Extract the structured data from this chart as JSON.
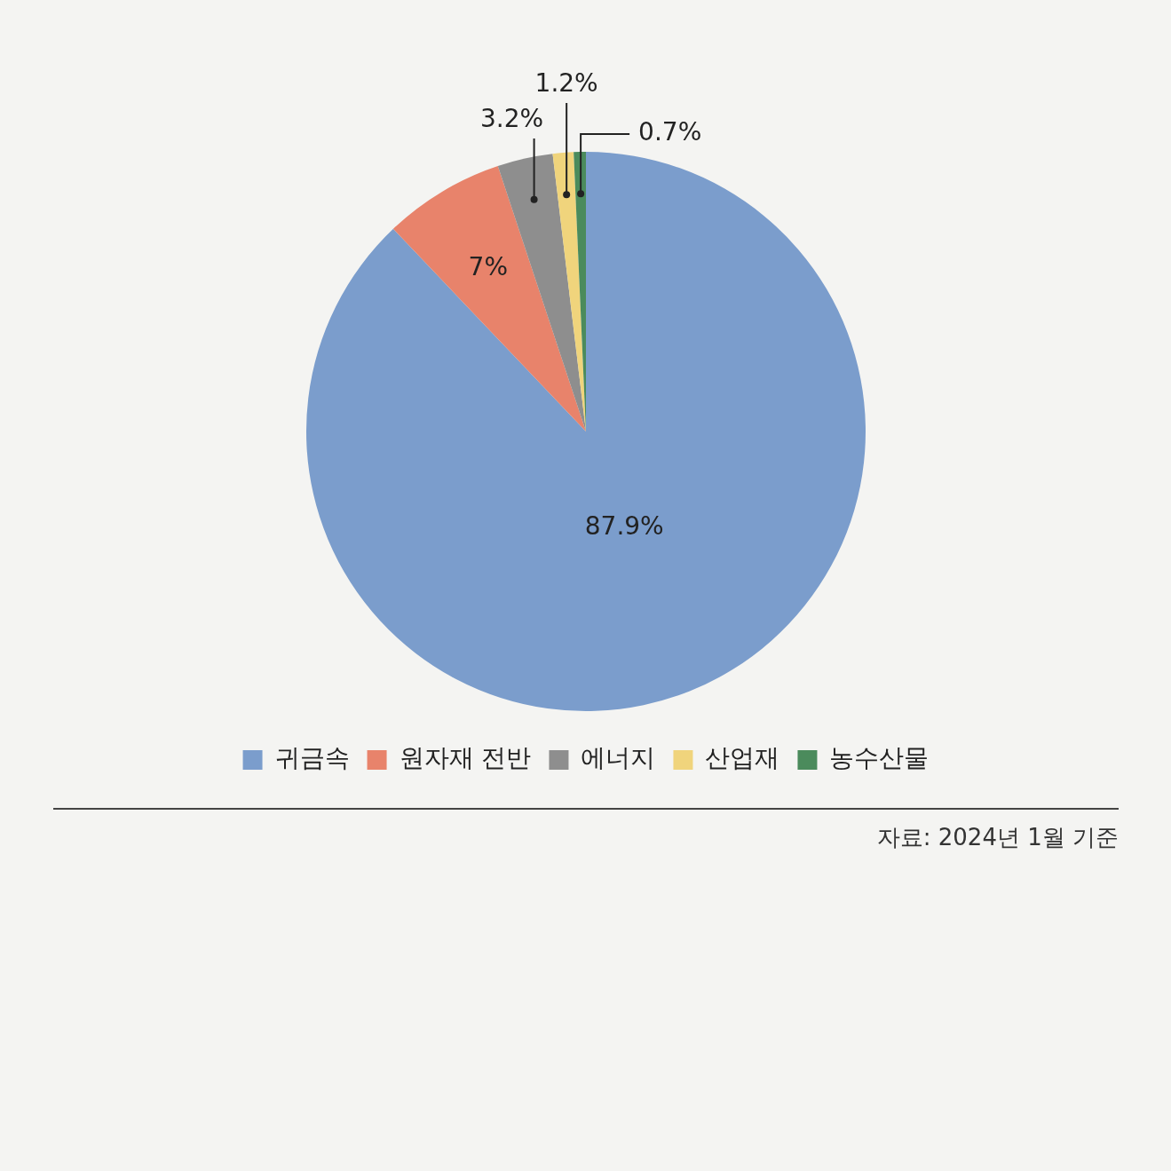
{
  "chart_data": {
    "type": "pie",
    "categories": [
      "귀금속",
      "원자재 전반",
      "에너지",
      "산업재",
      "농수산물"
    ],
    "values": [
      87.9,
      7,
      3.2,
      1.2,
      0.7
    ],
    "value_labels": [
      "87.9%",
      "7%",
      "3.2%",
      "1.2%",
      "0.7%"
    ],
    "colors": [
      "#7b9dcc",
      "#e8836b",
      "#8e8e8e",
      "#f0d47c",
      "#4b8b5c"
    ],
    "legend": "bottom",
    "annotations": [
      "자료: 2024년 1월 기준"
    ]
  }
}
